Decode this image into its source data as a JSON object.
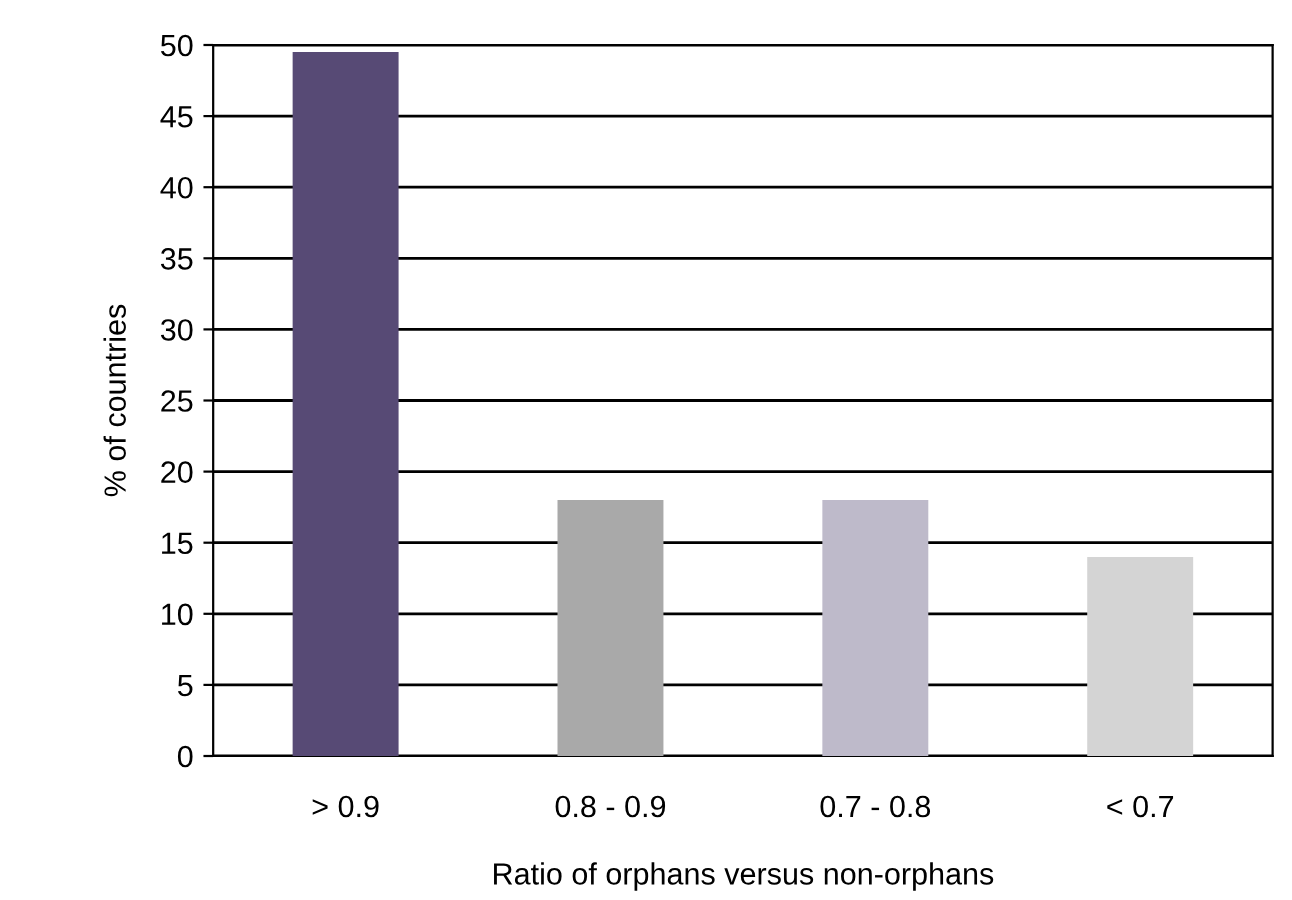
{
  "chart_data": {
    "type": "bar",
    "xlabel": "Ratio of orphans versus non-orphans",
    "ylabel": "% of countries",
    "categories": [
      "> 0.9",
      "0.8 - 0.9",
      "0.7 - 0.8",
      "< 0.7"
    ],
    "values": [
      49.5,
      18,
      18,
      14
    ],
    "colors": [
      "#574a75",
      "#a9a9a9",
      "#bebaca",
      "#d4d4d4"
    ],
    "ylim": [
      0,
      50
    ],
    "yticks": [
      0,
      5,
      10,
      15,
      20,
      25,
      30,
      35,
      40,
      45,
      50
    ],
    "grid": "y"
  }
}
